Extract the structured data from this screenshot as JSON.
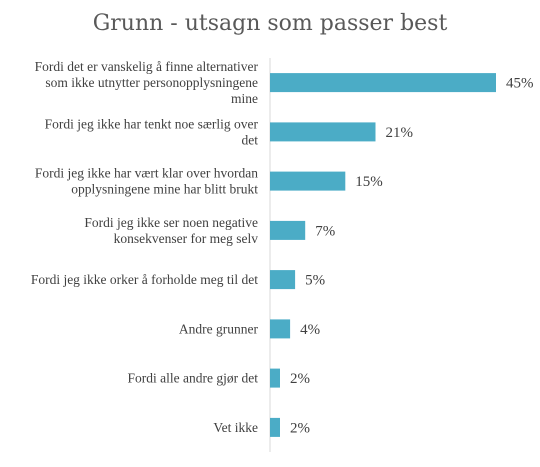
{
  "chart_data": {
    "type": "bar",
    "orientation": "horizontal",
    "title": "Grunn - utsagn som passer best",
    "categories": [
      [
        "Fordi det er vanskelig å finne alternativer",
        "som ikke utnytter personopplysningene",
        "mine"
      ],
      [
        "Fordi jeg ikke har tenkt noe særlig over",
        "det"
      ],
      [
        "Fordi jeg ikke har vært klar over hvordan",
        "opplysningene mine har blitt brukt"
      ],
      [
        "Fordi jeg ikke ser noen negative",
        "konsekvenser for meg selv"
      ],
      [
        "Fordi jeg ikke orker å forholde meg til det"
      ],
      [
        "Andre grunner"
      ],
      [
        "Fordi alle andre gjør det"
      ],
      [
        "Vet ikke"
      ]
    ],
    "values": [
      45,
      21,
      15,
      7,
      5,
      4,
      2,
      2
    ],
    "value_labels": [
      "45%",
      "21%",
      "15%",
      "7%",
      "5%",
      "4%",
      "2%",
      "2%"
    ],
    "bar_color": "#4bacc6",
    "xlim": [
      0,
      45
    ],
    "grid": false,
    "legend": "none"
  }
}
